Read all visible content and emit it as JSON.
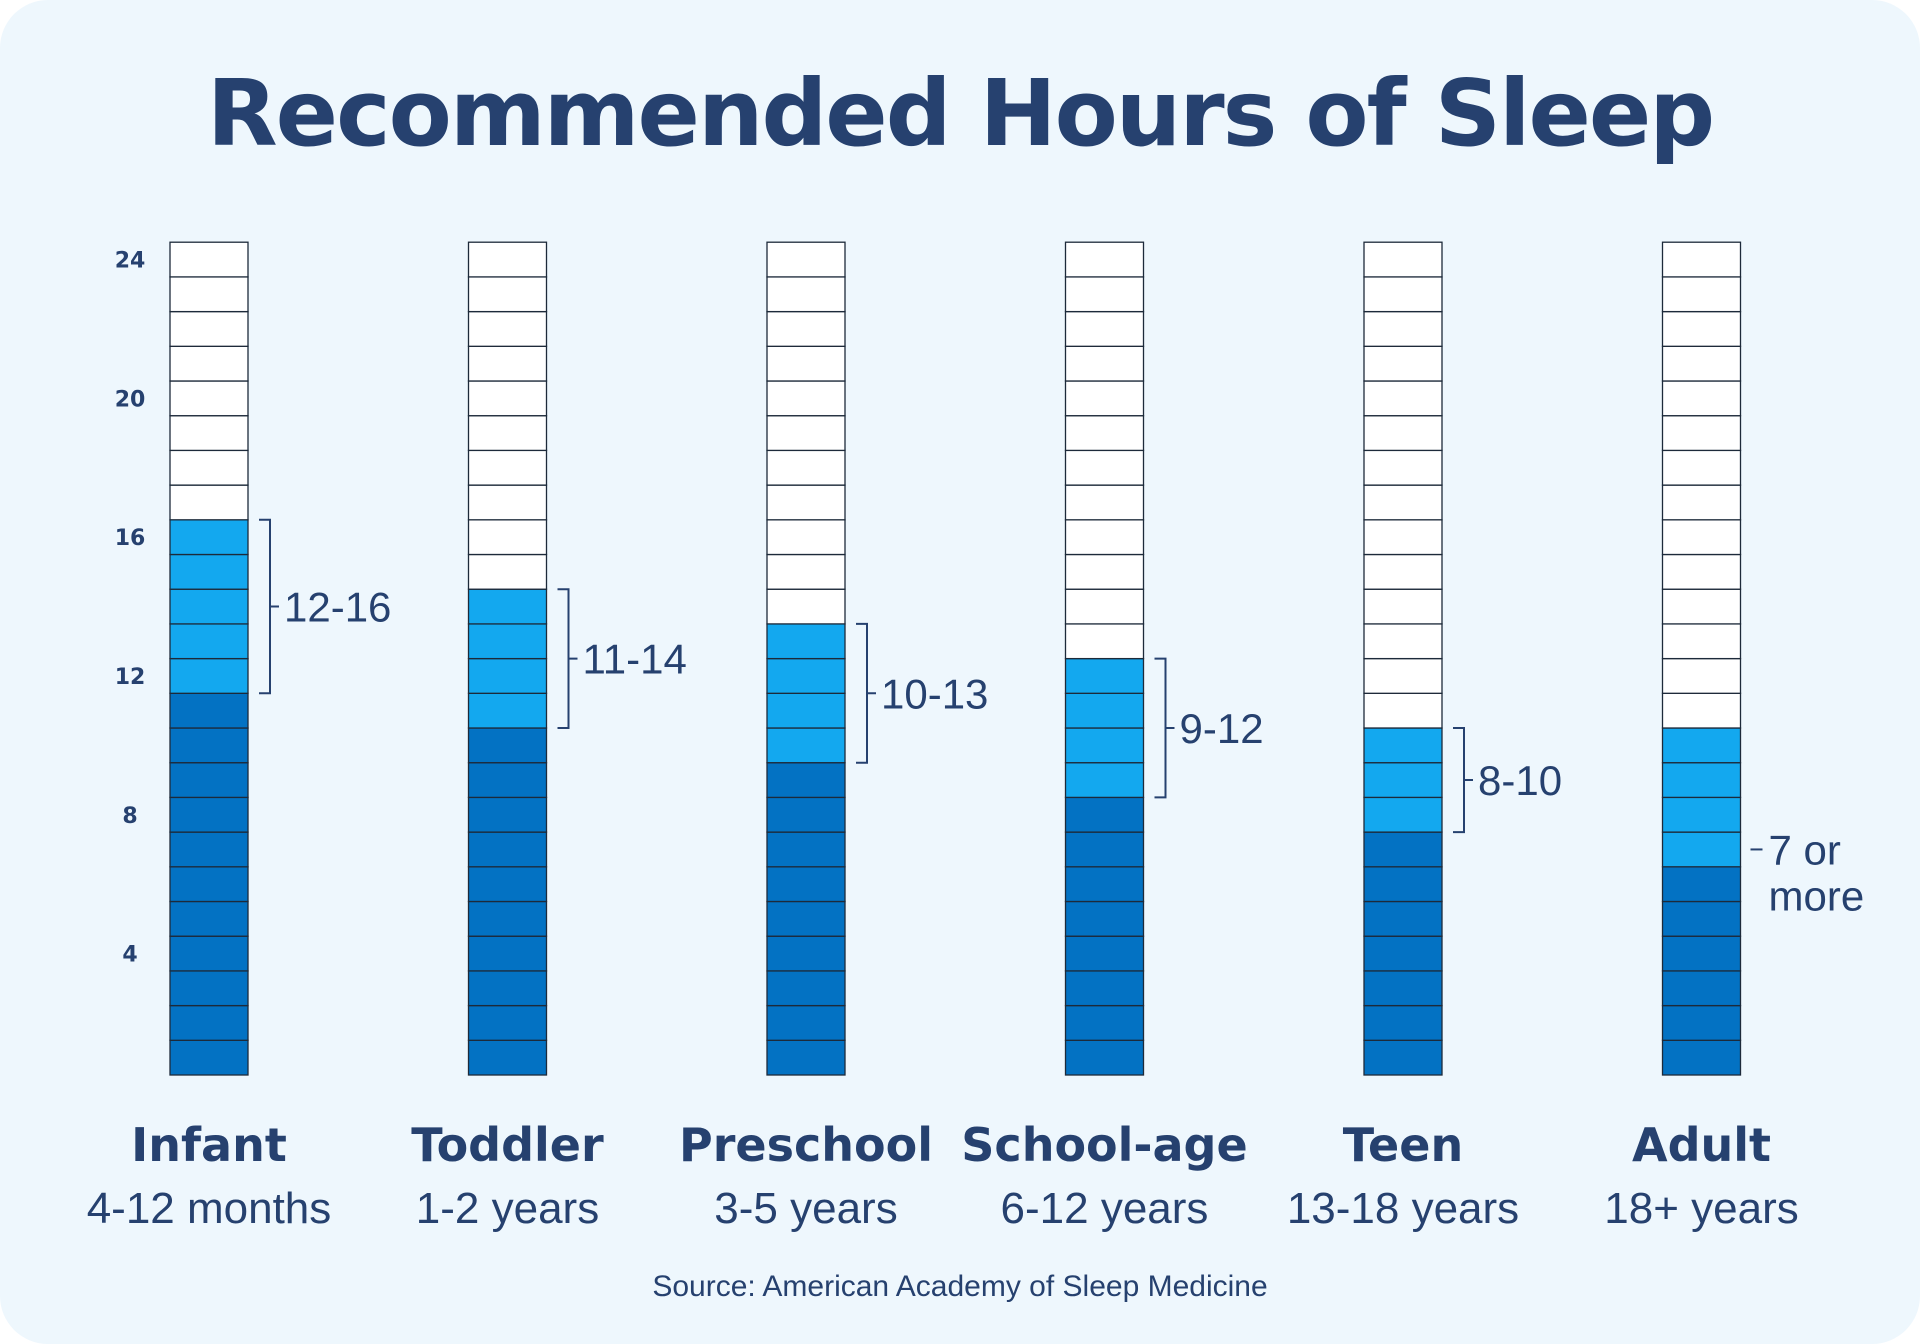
{
  "title": "Recommended Hours of Sleep",
  "source": "Source: American Academy of Sleep Medicine",
  "colors": {
    "base": "#0372c3",
    "range": "#13a8ef",
    "empty": "#ffffff",
    "text": "#26416f",
    "background": "#eef7fd"
  },
  "chart_data": {
    "type": "bar",
    "ylim": [
      0,
      24
    ],
    "yticks": [
      4,
      8,
      12,
      16,
      20,
      24
    ],
    "grid": false,
    "categories": [
      "Infant",
      "Toddler",
      "Preschool",
      "School-age",
      "Teen",
      "Adult"
    ],
    "subcategories": [
      "4-12 months",
      "1-2 years",
      "3-5 years",
      "6-12 years",
      "13-18 years",
      "18+ years"
    ],
    "series": [
      {
        "values": [
          11,
          10,
          9,
          8,
          7,
          6
        ]
      },
      {
        "values": [
          5,
          4,
          4,
          4,
          3,
          4
        ]
      }
    ],
    "range_labels": [
      "12-16",
      "11-14",
      "10-13",
      "9-12",
      "8-10",
      "7 or more"
    ]
  }
}
